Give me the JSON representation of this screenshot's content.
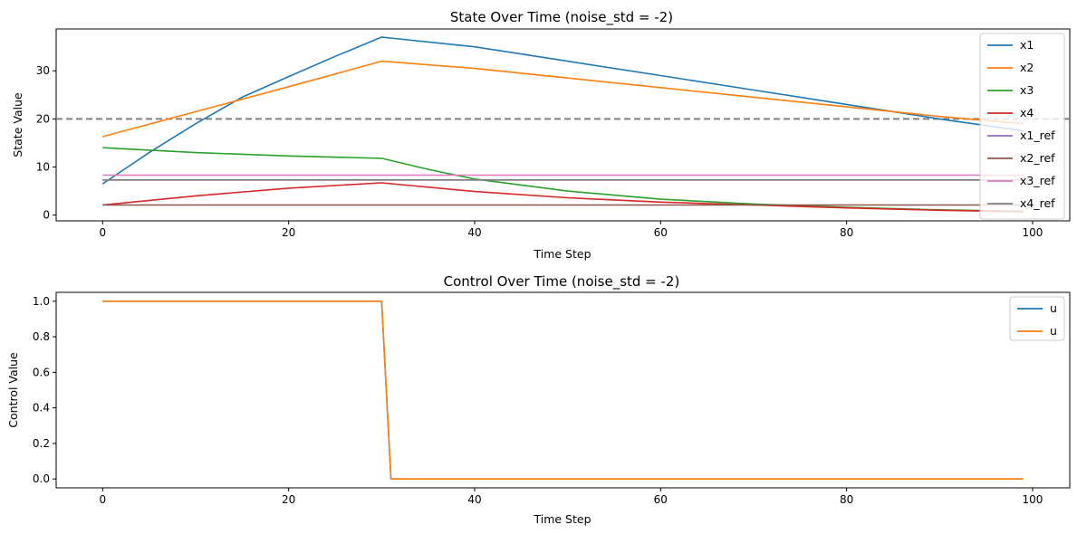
{
  "chart_data": [
    {
      "type": "line",
      "title": "State Over Time (noise_std = -2)",
      "xlabel": "Time Step",
      "ylabel": "State Value",
      "xlim": [
        -5,
        104
      ],
      "ylim": [
        -1.2,
        38.7
      ],
      "xticks": [
        0,
        20,
        40,
        60,
        80,
        100
      ],
      "yticks": [
        0,
        10,
        20,
        30
      ],
      "grid": false,
      "legend_position": "upper right",
      "hline": {
        "y": 20,
        "style": "dashed",
        "color": "#808080"
      },
      "series": [
        {
          "name": "x1",
          "color": "#1f77b4",
          "points": [
            [
              0,
              6.5
            ],
            [
              5,
              13
            ],
            [
              10,
              19
            ],
            [
              15,
              24.5
            ],
            [
              20,
              28.8
            ],
            [
              25,
              33
            ],
            [
              30,
              37
            ],
            [
              40,
              35
            ],
            [
              50,
              32
            ],
            [
              60,
              29
            ],
            [
              70,
              26
            ],
            [
              80,
              23
            ],
            [
              90,
              20
            ],
            [
              99,
              17.5
            ]
          ]
        },
        {
          "name": "x2",
          "color": "#ff7f0e",
          "points": [
            [
              0,
              16.3
            ],
            [
              10,
              21.5
            ],
            [
              20,
              26.7
            ],
            [
              30,
              32
            ],
            [
              40,
              30.5
            ],
            [
              50,
              28.5
            ],
            [
              60,
              26.5
            ],
            [
              70,
              24.5
            ],
            [
              80,
              22.5
            ],
            [
              90,
              20.5
            ],
            [
              99,
              19
            ]
          ]
        },
        {
          "name": "x3",
          "color": "#2ca02c",
          "points": [
            [
              0,
              14
            ],
            [
              10,
              13
            ],
            [
              20,
              12.3
            ],
            [
              30,
              11.8
            ],
            [
              35,
              9.5
            ],
            [
              40,
              7.5
            ],
            [
              50,
              5
            ],
            [
              60,
              3.3
            ],
            [
              70,
              2.3
            ],
            [
              80,
              1.6
            ],
            [
              90,
              1.1
            ],
            [
              99,
              0.8
            ]
          ]
        },
        {
          "name": "x4",
          "color": "#d62728",
          "points": [
            [
              0,
              2.1
            ],
            [
              10,
              4
            ],
            [
              20,
              5.6
            ],
            [
              30,
              6.7
            ],
            [
              40,
              4.9
            ],
            [
              50,
              3.6
            ],
            [
              60,
              2.7
            ],
            [
              70,
              2.1
            ],
            [
              80,
              1.5
            ],
            [
              90,
              1.0
            ],
            [
              99,
              0.7
            ]
          ]
        },
        {
          "name": "x1_ref",
          "color": "#9467bd",
          "points": [
            [
              0,
              7.3
            ],
            [
              99,
              7.3
            ]
          ]
        },
        {
          "name": "x2_ref",
          "color": "#8c564b",
          "points": [
            [
              0,
              2.1
            ],
            [
              99,
              2.1
            ]
          ]
        },
        {
          "name": "x3_ref",
          "color": "#e377c2",
          "points": [
            [
              0,
              8.3
            ],
            [
              99,
              8.3
            ]
          ]
        },
        {
          "name": "x4_ref",
          "color": "#7f7f7f",
          "points": [
            [
              0,
              7.3
            ],
            [
              99,
              7.3
            ]
          ]
        }
      ]
    },
    {
      "type": "line",
      "title": "Control Over Time (noise_std = -2)",
      "xlabel": "Time Step",
      "ylabel": "Control Value",
      "xlim": [
        -5,
        104
      ],
      "ylim": [
        -0.05,
        1.05
      ],
      "xticks": [
        0,
        20,
        40,
        60,
        80,
        100
      ],
      "yticks": [
        0.0,
        0.2,
        0.4,
        0.6,
        0.8,
        1.0
      ],
      "grid": false,
      "legend_position": "upper right",
      "series": [
        {
          "name": "u",
          "color": "#1f77b4",
          "points": [
            [
              0,
              1
            ],
            [
              30,
              1
            ],
            [
              31,
              0
            ],
            [
              99,
              0
            ]
          ]
        },
        {
          "name": "u",
          "color": "#ff7f0e",
          "points": [
            [
              0,
              1
            ],
            [
              30,
              1
            ],
            [
              31,
              0
            ],
            [
              99,
              0
            ]
          ]
        }
      ]
    }
  ]
}
